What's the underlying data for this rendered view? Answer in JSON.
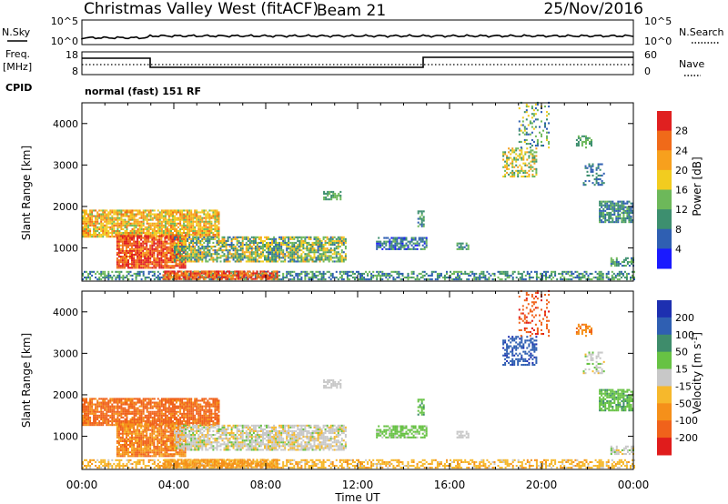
{
  "header": {
    "title": "Christmas Valley West (fitACF)",
    "beam": "Beam 21",
    "date": "25/Nov/2016"
  },
  "nsky_panel": {
    "left_label": "N.Sky",
    "right_label": "N.Search",
    "left_ticks": [
      "10^5",
      "10^0"
    ],
    "right_ticks": [
      "10^5",
      "10^0"
    ]
  },
  "freq_panel": {
    "left_label_line1": "Freq.",
    "left_label_line2": "[MHz]",
    "right_label": "Nave",
    "left_ticks": [
      "18",
      "8"
    ],
    "right_ticks": [
      "60",
      "0"
    ]
  },
  "cpid": {
    "label": "CPID",
    "value": "normal (fast) 151 RF"
  },
  "colors": {
    "power_scale": [
      "#1a1aff",
      "#2f5fb2",
      "#3d8f6f",
      "#6db85a",
      "#f2cc1f",
      "#f7a01d",
      "#f06a19",
      "#e02020"
    ],
    "velocity_scale": [
      "#1d2fb0",
      "#2f5fb2",
      "#3e8c6b",
      "#67c244",
      "#c8c8c8",
      "#f6b82c",
      "#f5901a",
      "#f0621b",
      "#e01c1c"
    ]
  },
  "chart_data": [
    {
      "type": "heatmap",
      "name": "power",
      "ylabel": "Slant Range [km]",
      "xlabel": "",
      "x_ticks": [
        "00:00",
        "04:00",
        "08:00",
        "12:00",
        "16:00",
        "20:00",
        "00:00"
      ],
      "y_ticks": [
        "1000",
        "2000",
        "3000",
        "4000"
      ],
      "colorbar_label": "Power [dB]",
      "colorbar_ticks": [
        "4",
        "8",
        "12",
        "16",
        "20",
        "24",
        "28"
      ],
      "ylim": [
        200,
        4500
      ],
      "xlim_hours": [
        0,
        24
      ],
      "clim": [
        0,
        32
      ]
    },
    {
      "type": "heatmap",
      "name": "velocity",
      "ylabel": "Slant Range [km]",
      "xlabel": "Time UT",
      "x_ticks": [
        "00:00",
        "04:00",
        "08:00",
        "12:00",
        "16:00",
        "20:00",
        "00:00"
      ],
      "y_ticks": [
        "1000",
        "2000",
        "3000",
        "4000"
      ],
      "colorbar_label": "Velocity [m s",
      "colorbar_label_sup": "-1",
      "colorbar_label_end": "]",
      "colorbar_ticks": [
        "200",
        "100",
        "50",
        "15",
        "-15",
        "-50",
        "-100",
        "-200"
      ],
      "ylim": [
        200,
        4500
      ],
      "xlim_hours": [
        0,
        24
      ]
    }
  ]
}
